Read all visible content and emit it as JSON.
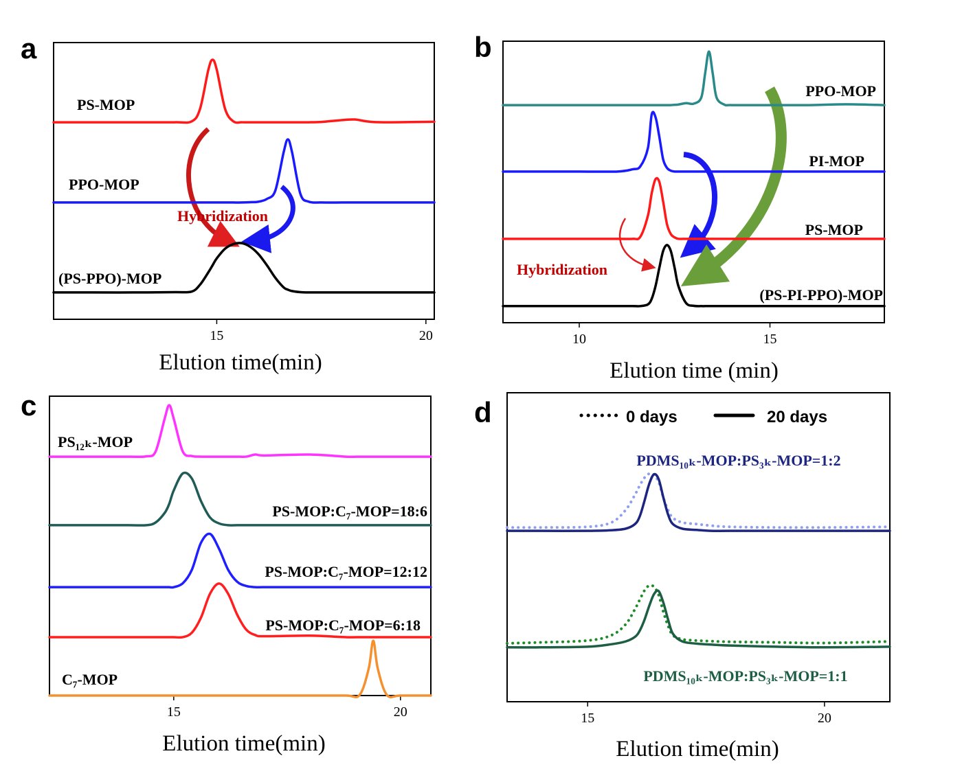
{
  "chart_data": [
    {
      "type": "line",
      "panel": "a",
      "x_label": "Elution time(min)",
      "xlim": [
        11.1,
        20.2
      ],
      "xticks": [
        15,
        20
      ],
      "ylim": [
        0,
        100
      ],
      "annotations": [
        {
          "text": "Hybridization",
          "color": "#c00000"
        }
      ],
      "x": [
        11.1,
        12,
        13,
        14,
        14.4,
        14.6,
        14.8,
        14.9,
        15.0,
        15.2,
        15.4,
        15.6,
        15.8,
        16.0,
        16.2,
        16.4,
        16.6,
        16.7,
        16.8,
        17.0,
        17.2,
        17.5,
        18,
        18.3,
        18.6,
        19,
        20.2
      ],
      "series": [
        {
          "name": "PS-MOP",
          "color": "#ff1a1a",
          "values": [
            71.2,
            71.2,
            71.2,
            71.2,
            71.5,
            76,
            90.2,
            93.8,
            90.2,
            76,
            71.5,
            71.2,
            71.2,
            71.2,
            71.2,
            71.2,
            71.2,
            71.2,
            71.2,
            71.2,
            71.2,
            71.3,
            72,
            72.2,
            71.5,
            71.2,
            71.4
          ]
        },
        {
          "name": "PPO-MOP",
          "color": "#1a1aff",
          "values": [
            42.2,
            42.2,
            42.2,
            42.2,
            42.2,
            42.2,
            42.2,
            42.2,
            42.2,
            42.2,
            42.2,
            42.2,
            42.3,
            42.5,
            43.5,
            46.5,
            60.4,
            65,
            60.4,
            45.3,
            42.5,
            42.2,
            42.2,
            42.2,
            42.2,
            42.2,
            42.2
          ]
        },
        {
          "name": "(PS-PPO)-MOP",
          "color": "#000000",
          "values": [
            9.7,
            9.7,
            9.7,
            9.8,
            10,
            12.5,
            17,
            19.5,
            22,
            25.5,
            27.2,
            27.5,
            26.2,
            23.5,
            19.5,
            15,
            11.5,
            10.7,
            10.2,
            9.8,
            9.7,
            9.7,
            9.7,
            9.7,
            9.7,
            9.7,
            9.7
          ]
        }
      ]
    },
    {
      "type": "line",
      "panel": "b",
      "x_label": "Elution time (min)",
      "xlim": [
        8,
        18
      ],
      "xticks": [
        10,
        15
      ],
      "ylim": [
        0,
        100
      ],
      "annotations": [
        {
          "text": "Hybridization",
          "color": "#c00000"
        }
      ],
      "x": [
        8,
        9,
        10,
        11,
        11.4,
        11.6,
        11.8,
        11.9,
        12.0,
        12.1,
        12.2,
        12.3,
        12.4,
        12.5,
        12.6,
        12.8,
        13.0,
        13.2,
        13.3,
        13.4,
        13.5,
        13.6,
        13.8,
        14,
        15,
        16,
        17,
        18
      ],
      "series": [
        {
          "name": "PPO-MOP",
          "color": "#2a8a8a",
          "values": [
            77.3,
            77.3,
            77.3,
            77.3,
            77.3,
            77.3,
            77.3,
            77.3,
            77.3,
            77.3,
            77.3,
            77.3,
            77.3,
            77.4,
            77.5,
            78,
            77.8,
            80,
            88.5,
            96.3,
            88.5,
            80,
            77.5,
            77.3,
            77.3,
            77.3,
            77.6,
            77.3
          ]
        },
        {
          "name": "PI-MOP",
          "color": "#1a1aff",
          "values": [
            53.7,
            53.7,
            53.7,
            53.7,
            54.5,
            55.5,
            62,
            74,
            73,
            66,
            58,
            55,
            54,
            53.7,
            53.7,
            53.7,
            53.7,
            53.7,
            53.7,
            53.7,
            53.7,
            53.7,
            53.7,
            53.7,
            53.7,
            53.7,
            53.7,
            53.7
          ]
        },
        {
          "name": "PS-MOP",
          "color": "#ff1a1a",
          "values": [
            29.8,
            29.8,
            29.8,
            29.8,
            29.8,
            30.5,
            38,
            46,
            51,
            50,
            43,
            35,
            31.5,
            30.3,
            29.8,
            29.8,
            29.8,
            29.8,
            29.8,
            29.8,
            29.8,
            29.8,
            29.8,
            29.8,
            29.8,
            29.8,
            29.8,
            29.8
          ]
        },
        {
          "name": "(PS-PI-PPO)-MOP",
          "color": "#000000",
          "values": [
            5.9,
            5.9,
            5.9,
            5.9,
            5.9,
            5.9,
            6.5,
            8.5,
            13,
            19.5,
            25.5,
            27.6,
            25.5,
            19.5,
            13,
            7,
            6,
            5.9,
            5.9,
            5.9,
            5.9,
            5.9,
            5.9,
            5.9,
            5.9,
            5.9,
            5.9,
            5.9
          ]
        }
      ]
    },
    {
      "type": "line",
      "panel": "c",
      "x_label": "Elution time(min)",
      "xlim": [
        12.26,
        20.67
      ],
      "xticks": [
        15,
        20
      ],
      "ylim": [
        0,
        100
      ],
      "x": [
        12.26,
        13,
        14,
        14.4,
        14.6,
        14.8,
        14.9,
        15.0,
        15.2,
        15.4,
        15.6,
        15.8,
        16.0,
        16.2,
        16.4,
        16.6,
        16.8,
        17,
        18,
        18.8,
        19.1,
        19.3,
        19.4,
        19.5,
        19.7,
        20,
        20.67
      ],
      "series": [
        {
          "name": "PS₁₂ₖ-MOP",
          "color": "#ff33ff",
          "values": [
            79.8,
            79.8,
            79.8,
            79.9,
            81.5,
            92.5,
            97,
            92.5,
            81.5,
            80,
            79.8,
            79.8,
            79.8,
            79.8,
            79.8,
            79.8,
            80.5,
            80.2,
            80.5,
            79.8,
            79.8,
            79.8,
            79.8,
            79.8,
            79.8,
            79.8,
            79.8
          ]
        },
        {
          "name": "PS-MOP:C₇-MOP=18:6",
          "color": "#1f5c57",
          "values": [
            56.9,
            56.9,
            56.9,
            56.9,
            57.8,
            61,
            64,
            68.5,
            74.2,
            72.5,
            65,
            59.5,
            57.5,
            56.9,
            56.9,
            56.9,
            56.9,
            56.9,
            56.9,
            56.9,
            56.9,
            56.9,
            56.9,
            56.9,
            56.9,
            56.9,
            56.9
          ]
        },
        {
          "name": "PS-MOP:C₇-MOP=12:12",
          "color": "#1f1fff",
          "values": [
            36.2,
            36.2,
            36.2,
            36.2,
            36.2,
            36.2,
            36.2,
            36.2,
            37.5,
            42,
            51,
            54,
            49,
            42,
            38,
            36.6,
            36.2,
            36.2,
            36.2,
            36.2,
            36.2,
            36.2,
            36.2,
            36.2,
            36.2,
            36.2,
            36.2
          ]
        },
        {
          "name": "PS-MOP:C₇-MOP=6:18",
          "color": "#ff1f1f",
          "values": [
            19.5,
            19.5,
            19.5,
            19.5,
            19.5,
            19.5,
            19.5,
            19.5,
            19.5,
            21,
            26,
            34,
            37.4,
            34,
            27,
            22,
            20.2,
            19.8,
            20,
            19.5,
            19.5,
            19.5,
            19.5,
            19.5,
            19.5,
            19.5,
            19.5
          ]
        },
        {
          "name": "C₇-MOP",
          "color": "#f5902f",
          "values": [
            0,
            0,
            0,
            0,
            0,
            0,
            0,
            0,
            0,
            0,
            0,
            0,
            0,
            0,
            0,
            0,
            0,
            0,
            0,
            0,
            0.2,
            9,
            18.3,
            9,
            0.2,
            0,
            0
          ]
        }
      ]
    },
    {
      "type": "line",
      "panel": "d",
      "x_label": "Elution time(min)",
      "xlim": [
        13.3,
        21.38
      ],
      "xticks": [
        15,
        20
      ],
      "ylim": [
        0,
        100
      ],
      "legend": [
        {
          "name": "0 days",
          "style": "dotted"
        },
        {
          "name": "20 days",
          "style": "solid"
        }
      ],
      "annotations": [
        {
          "text": "PDMS₁₀ₖ-MOP:PS₃ₖ-MOP=1:2",
          "color": "#1c2680"
        },
        {
          "text": "PDMS₁₀ₖ-MOP:PS₃ₖ-MOP=1:1",
          "color": "#1d5e45"
        }
      ],
      "x": [
        13.3,
        14,
        15,
        15.5,
        15.8,
        16.0,
        16.1,
        16.2,
        16.3,
        16.4,
        16.5,
        16.6,
        16.7,
        16.8,
        17.0,
        17.3,
        17.6,
        18,
        19,
        20,
        21.38
      ],
      "series": [
        {
          "style": "dotted",
          "color": "#8f9ff0",
          "values": [
            56.4,
            56.4,
            56.6,
            58,
            62,
            67,
            70,
            72.5,
            73.8,
            73.5,
            71,
            66,
            62,
            59.5,
            58,
            57.5,
            57,
            56.6,
            56.4,
            56.4,
            56.6
          ]
        },
        {
          "style": "solid",
          "color": "#1c2680",
          "values": [
            55.3,
            55.3,
            55.3,
            55.5,
            56,
            57.5,
            60,
            65,
            70.5,
            73.6,
            72,
            66,
            60.5,
            57.5,
            56,
            55.6,
            55.3,
            55.3,
            55.3,
            55.3,
            55.3
          ]
        },
        {
          "style": "dotted",
          "color": "#1f8a2a",
          "values": [
            18.9,
            19.2,
            19.8,
            21.5,
            25,
            30,
            33,
            36,
            37.6,
            37.2,
            34.5,
            29,
            24.5,
            21.5,
            20.2,
            19.8,
            19.6,
            19.4,
            19.2,
            19.0,
            19.5
          ]
        },
        {
          "style": "solid",
          "color": "#1d5e45",
          "values": [
            17.6,
            17.6,
            17.8,
            18.6,
            19.5,
            21,
            23,
            26.5,
            31,
            34.8,
            35.8,
            32,
            26.5,
            22,
            19.5,
            18.8,
            18.5,
            18.2,
            17.8,
            17.6,
            17.8
          ]
        }
      ]
    }
  ]
}
